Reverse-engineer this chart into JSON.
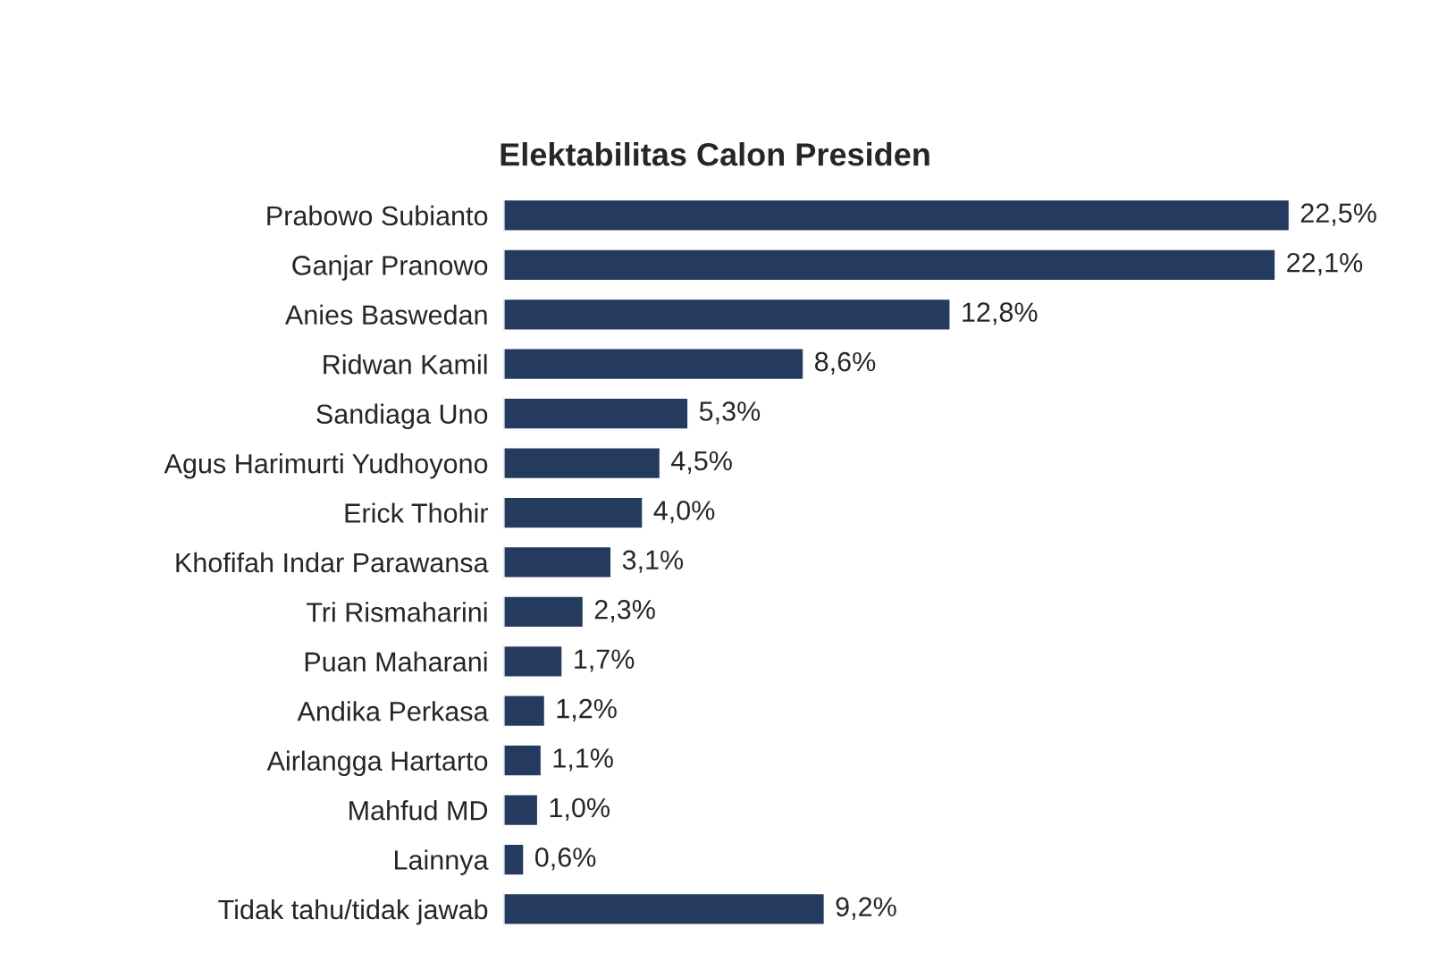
{
  "chart_data": {
    "type": "bar",
    "orientation": "horizontal",
    "title": "Elektabilitas Calon Presiden",
    "categories": [
      "Prabowo Subianto",
      "Ganjar Pranowo",
      "Anies Baswedan",
      "Ridwan Kamil",
      "Sandiaga Uno",
      "Agus Harimurti Yudhoyono",
      "Erick Thohir",
      "Khofifah Indar Parawansa",
      "Tri Rismaharini",
      "Puan Maharani",
      "Andika Perkasa",
      "Airlangga Hartarto",
      "Mahfud MD",
      "Lainnya",
      "Tidak tahu/tidak jawab"
    ],
    "values": [
      22.5,
      22.1,
      12.8,
      8.6,
      5.3,
      4.5,
      4.0,
      3.1,
      2.3,
      1.7,
      1.2,
      1.1,
      1.0,
      0.6,
      9.2
    ],
    "value_labels": [
      "22,5%",
      "22,1%",
      "12,8%",
      "8,6%",
      "5,3%",
      "4,5%",
      "4,0%",
      "3,1%",
      "2,3%",
      "1,7%",
      "1,2%",
      "1,1%",
      "1,0%",
      "0,6%",
      "9,2%"
    ],
    "color": "#243a5e",
    "grid": false,
    "legend": false
  }
}
